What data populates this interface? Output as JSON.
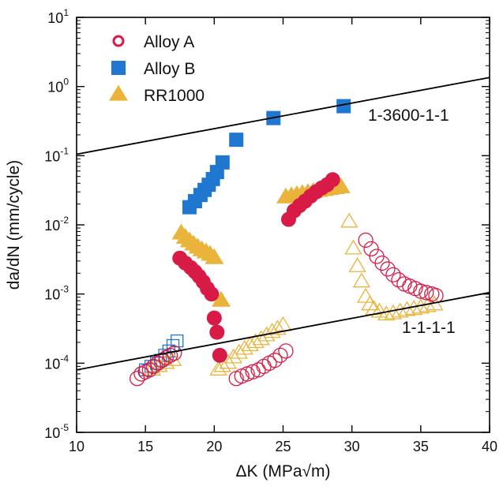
{
  "chart_data": {
    "type": "scatter",
    "xlabel": "ΔK (MPa√m)",
    "ylabel": "da/dN (mm/cycle)",
    "xlim": [
      10,
      40
    ],
    "ylim": [
      1e-05,
      10
    ],
    "yscale": "log",
    "x_ticks": [
      "10",
      "15",
      "20",
      "25",
      "30",
      "35",
      "40"
    ],
    "y_ticks": [
      {
        "base": "10",
        "exp": "1"
      },
      {
        "base": "10",
        "exp": "0"
      },
      {
        "base": "10",
        "exp": "-1"
      },
      {
        "base": "10",
        "exp": "-2"
      },
      {
        "base": "10",
        "exp": "-3"
      },
      {
        "base": "10",
        "exp": "-4"
      },
      {
        "base": "10",
        "exp": "-5"
      }
    ],
    "grid": false,
    "legend_position": "top-left",
    "colors": {
      "alloy_a": "#d81b46",
      "alloy_b": "#1f77d0",
      "rr1000": "#eab33a"
    },
    "legend": [
      {
        "label": "Alloy A",
        "marker": "ring",
        "color": "#d81b46"
      },
      {
        "label": "Alloy B",
        "marker": "square",
        "color": "#1f77d0"
      },
      {
        "label": "RR1000",
        "marker": "triangle",
        "color": "#eab33a"
      }
    ],
    "lines": [
      {
        "label": "1-3600-1-1",
        "x": [
          10,
          40
        ],
        "y": [
          0.105,
          1.35
        ]
      },
      {
        "label": "1-1-1-1",
        "x": [
          10,
          40
        ],
        "y": [
          8e-05,
          0.00105
        ]
      }
    ],
    "series": [
      {
        "series": "Alloy B",
        "style": "open",
        "marker": "square",
        "color": "#1f77d0",
        "x": [
          15.0,
          15.4,
          15.8,
          16.1,
          16.4,
          16.7,
          17.0,
          17.3
        ],
        "y": [
          8e-05,
          9e-05,
          0.0001,
          0.00011,
          0.00013,
          0.00015,
          0.00018,
          0.00021
        ]
      },
      {
        "series": "RR1000",
        "style": "open",
        "marker": "triangle",
        "color": "#eab33a",
        "x": [
          15.5,
          16.0,
          16.5,
          17.0,
          20.3,
          20.6,
          21.0,
          21.4,
          21.8,
          22.2,
          22.6,
          23.0,
          23.4,
          23.8,
          24.2,
          24.6,
          25.0,
          29.8,
          30.1,
          30.4,
          30.7,
          31.0,
          31.3,
          31.6,
          32.0,
          32.5,
          33.0,
          33.5,
          34.0,
          34.5,
          35.0,
          35.5,
          36.0
        ],
        "y": [
          8e-05,
          9e-05,
          0.0001,
          0.00011,
          8e-05,
          9e-05,
          0.0001,
          0.00012,
          0.00014,
          0.00016,
          0.00018,
          0.0002,
          0.00022,
          0.00025,
          0.00028,
          0.00031,
          0.00035,
          0.011,
          0.0045,
          0.0025,
          0.0015,
          0.0009,
          0.0007,
          0.0006,
          0.00055,
          0.0005,
          0.00052,
          0.00055,
          0.00058,
          0.0006,
          0.00063,
          0.00066,
          0.0007
        ]
      },
      {
        "series": "Alloy A",
        "style": "open",
        "marker": "circle",
        "color": "#d81b46",
        "x": [
          14.4,
          14.7,
          15.0,
          15.3,
          15.6,
          15.9,
          16.2,
          16.5,
          16.8,
          17.1,
          21.6,
          22.0,
          22.4,
          22.8,
          23.2,
          23.6,
          24.0,
          24.4,
          24.8,
          25.2,
          31.0,
          31.4,
          31.8,
          32.2,
          32.6,
          33.0,
          33.4,
          33.8,
          34.2,
          34.6,
          35.0,
          35.4,
          35.8,
          36.1
        ],
        "y": [
          6e-05,
          7e-05,
          7.5e-05,
          8e-05,
          9e-05,
          0.0001,
          0.00011,
          0.00012,
          0.00013,
          0.00014,
          6e-05,
          6.5e-05,
          7e-05,
          7.5e-05,
          8e-05,
          9e-05,
          0.0001,
          0.00011,
          0.00013,
          0.00015,
          0.006,
          0.0045,
          0.0035,
          0.0028,
          0.0023,
          0.0019,
          0.0016,
          0.0014,
          0.0013,
          0.0012,
          0.0011,
          0.00105,
          0.001,
          0.00095
        ]
      },
      {
        "series": "RR1000",
        "style": "filled",
        "marker": "triangle",
        "color": "#eab33a",
        "x": [
          17.6,
          17.9,
          18.2,
          18.5,
          18.8,
          19.1,
          19.4,
          19.7,
          20.0,
          20.5,
          25.2,
          25.6,
          26.0,
          26.4,
          26.8,
          27.2,
          27.6,
          28.0,
          28.4,
          28.8,
          29.2
        ],
        "y": [
          0.0075,
          0.0065,
          0.0058,
          0.0052,
          0.0047,
          0.0043,
          0.004,
          0.0037,
          0.0033,
          0.0008,
          0.025,
          0.026,
          0.027,
          0.028,
          0.029,
          0.03,
          0.031,
          0.032,
          0.033,
          0.034,
          0.035
        ]
      },
      {
        "series": "Alloy A",
        "style": "filled",
        "marker": "circle",
        "color": "#d81b46",
        "x": [
          17.5,
          17.9,
          18.3,
          18.6,
          18.9,
          19.2,
          19.5,
          19.8,
          20.0,
          20.2,
          20.4,
          25.4,
          25.8,
          26.2,
          26.6,
          27.0,
          27.4,
          27.8,
          28.2,
          28.6
        ],
        "y": [
          0.0033,
          0.0028,
          0.0024,
          0.0021,
          0.0018,
          0.0015,
          0.0012,
          0.001,
          0.00045,
          0.00028,
          0.00013,
          0.012,
          0.016,
          0.019,
          0.022,
          0.026,
          0.03,
          0.034,
          0.038,
          0.045
        ]
      },
      {
        "series": "Alloy B",
        "style": "filled",
        "marker": "square",
        "color": "#1f77d0",
        "x": [
          18.2,
          18.6,
          19.0,
          19.3,
          19.6,
          19.9,
          20.2,
          20.6,
          21.6,
          24.3,
          29.4
        ],
        "y": [
          0.018,
          0.022,
          0.027,
          0.032,
          0.038,
          0.046,
          0.058,
          0.08,
          0.17,
          0.35,
          0.52
        ]
      }
    ],
    "annotations": [
      "1-3600-1-1",
      "1-1-1-1"
    ]
  }
}
